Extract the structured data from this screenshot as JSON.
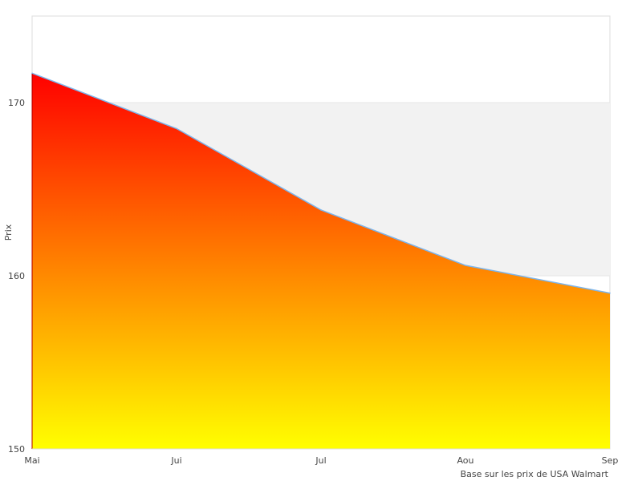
{
  "chart_data": {
    "type": "area",
    "categories": [
      "Mai",
      "Jui",
      "Jul",
      "Aou",
      "Sep"
    ],
    "series": [
      {
        "values": [
          171.7,
          168.5,
          163.8,
          160.6,
          159.0
        ]
      }
    ],
    "ylabel": "Prix",
    "xlabel": "",
    "ylim": [
      150,
      175
    ],
    "yticks": [
      150,
      160,
      170
    ],
    "plot_bands": [
      {
        "from": 160,
        "to": 170,
        "color": "#f2f2f2"
      }
    ],
    "gradient": {
      "top": "#ff0000",
      "bottom": "#ffff00"
    },
    "line_color": "#7cb5ec",
    "grid": true,
    "credits": "Base sur les prix de USA Walmart"
  }
}
